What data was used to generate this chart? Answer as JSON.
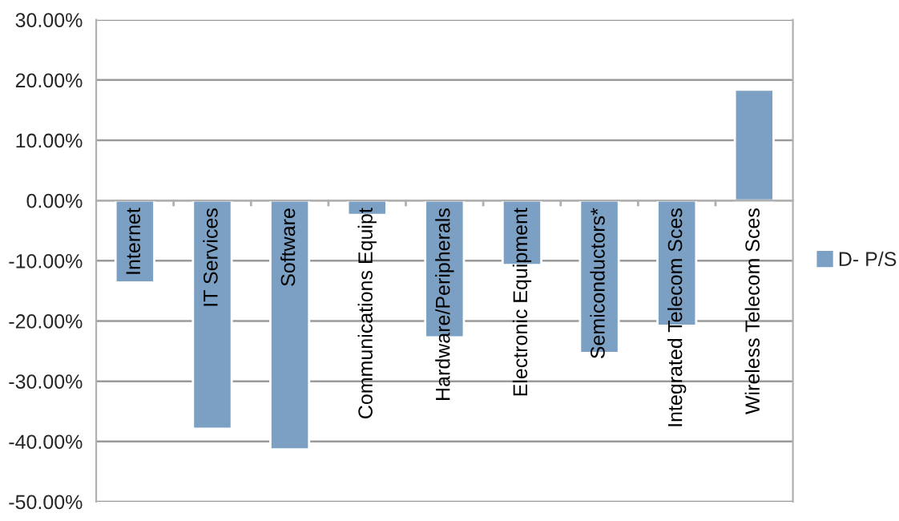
{
  "chart_data": {
    "type": "bar",
    "categories": [
      "Internet",
      "IT Services",
      "Software",
      "Communications Equipt",
      "Hardware/Peripherals",
      "Electronic Equipment",
      "Semiconductors*",
      "Integrated Telecom Sces",
      "Wireless Telecom Sces"
    ],
    "series": [
      {
        "name": "D- P/S",
        "color": "#7ba0c4",
        "values": [
          -13.6,
          -37.9,
          -41.3,
          -2.4,
          -22.7,
          -10.7,
          -25.3,
          -20.8,
          18.4
        ]
      }
    ],
    "ylim": [
      -50,
      30
    ],
    "yticks": [
      {
        "value": -50,
        "label": "-50.00%"
      },
      {
        "value": -40,
        "label": "-40.00%"
      },
      {
        "value": -30,
        "label": "-30.00%"
      },
      {
        "value": -20,
        "label": "-20.00%"
      },
      {
        "value": -10,
        "label": "-10.00%"
      },
      {
        "value": 0,
        "label": "0.00%"
      },
      {
        "value": 10,
        "label": "10.00%"
      },
      {
        "value": 20,
        "label": "20.00%"
      },
      {
        "value": 30,
        "label": "30.00%"
      }
    ],
    "grid": "y",
    "legend": "right"
  }
}
